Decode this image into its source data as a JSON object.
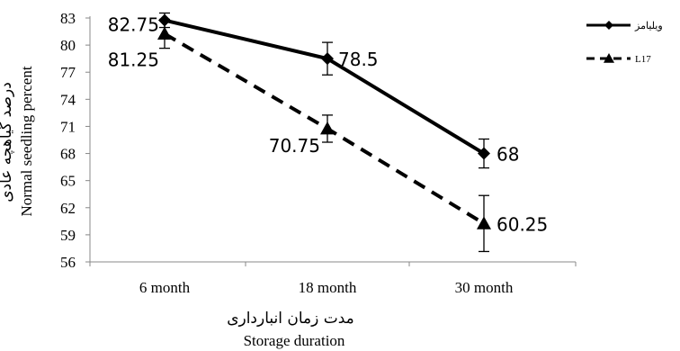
{
  "chart_data": {
    "type": "line",
    "categories": [
      "6 month",
      "18 month",
      "30 month"
    ],
    "series": [
      {
        "name": "ویلیامز",
        "values": [
          82.75,
          78.5,
          68
        ],
        "labels": [
          "82.75",
          "78.5",
          "68"
        ],
        "error": [
          0.8,
          1.8,
          1.6
        ],
        "marker": "diamond",
        "line_style": "solid",
        "color": "#000000"
      },
      {
        "name": "L17",
        "values": [
          81.25,
          70.75,
          60.25
        ],
        "labels": [
          "81.25",
          "70.75",
          "60.25"
        ],
        "error": [
          1.6,
          1.5,
          3.1
        ],
        "marker": "triangle",
        "line_style": "dashed",
        "color": "#000000"
      }
    ],
    "ylim": [
      56,
      83
    ],
    "yticks": [
      "56",
      "59",
      "62",
      "65",
      "68",
      "71",
      "74",
      "77",
      "80",
      "83"
    ],
    "xlabel": "مدت زمان انبارداری",
    "xlabel_en": "Storage duration",
    "ylabel": "درصد گیاهچه عادی",
    "ylabel_en": "Normal seedling percent",
    "grid": false,
    "legend": "top-right"
  }
}
